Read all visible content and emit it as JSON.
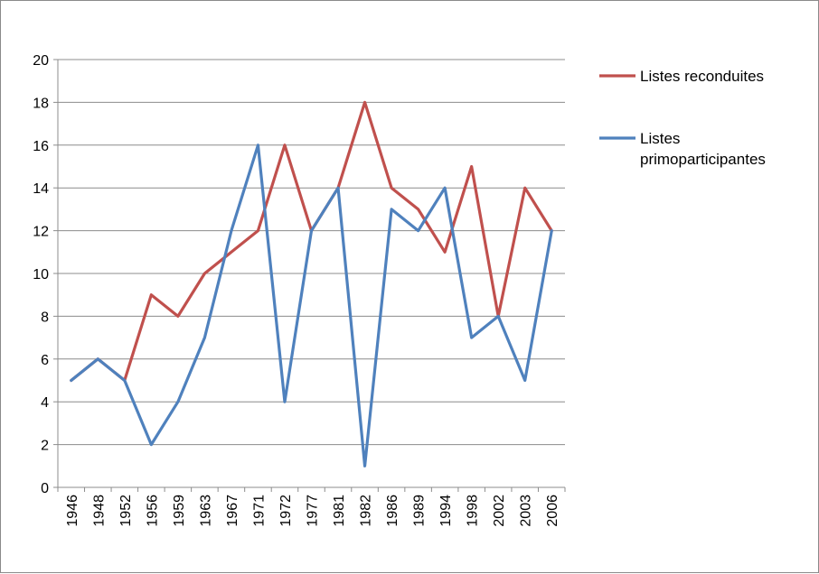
{
  "chart_data": {
    "type": "line",
    "title": "",
    "xlabel": "",
    "ylabel": "",
    "categories": [
      "1946",
      "1948",
      "1952",
      "1956",
      "1959",
      "1963",
      "1967",
      "1971",
      "1972",
      "1977",
      "1981",
      "1982",
      "1986",
      "1989",
      "1994",
      "1998",
      "2002",
      "2003",
      "2006"
    ],
    "ylim": [
      0,
      20
    ],
    "yticks": [
      0,
      2,
      4,
      6,
      8,
      10,
      12,
      14,
      16,
      18,
      20
    ],
    "grid": "horizontal",
    "legend_position": "right",
    "series": [
      {
        "name": "Listes reconduites",
        "legend_lines": [
          "Listes reconduites"
        ],
        "color": "#c0504d",
        "values": [
          5,
          6,
          5,
          9,
          8,
          10,
          11,
          12,
          16,
          12,
          14,
          18,
          14,
          13,
          11,
          15,
          8,
          14,
          12
        ]
      },
      {
        "name": "Listes primoparticipantes",
        "legend_lines": [
          "Listes",
          "primoparticipantes"
        ],
        "color": "#4f81bd",
        "values": [
          5,
          6,
          5,
          2,
          4,
          7,
          12,
          16,
          4,
          12,
          14,
          1,
          13,
          12,
          14,
          7,
          8,
          5,
          12
        ]
      }
    ]
  }
}
